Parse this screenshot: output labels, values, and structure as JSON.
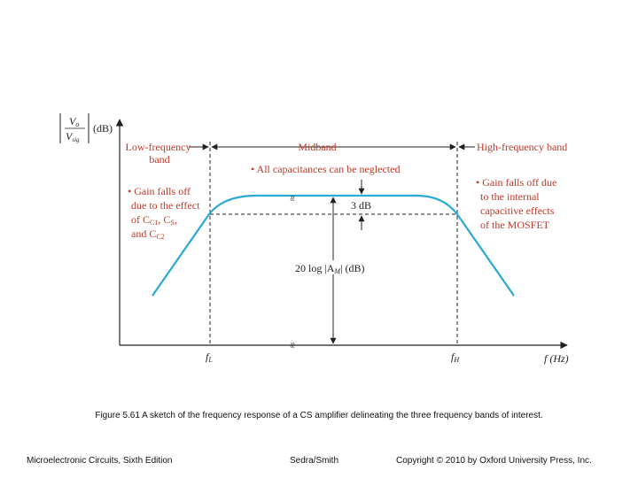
{
  "diagram": {
    "y_axis": {
      "fraction_numerator": "V",
      "numerator_sub": "o",
      "fraction_denominator": "V",
      "denominator_sub": "sig",
      "unit": "(dB)"
    },
    "x_axis": {
      "label": "f (Hz)"
    },
    "bands": {
      "low": [
        "Low-frequency",
        "band"
      ],
      "mid": "Midband",
      "high": "High-frequency band"
    },
    "notes": {
      "mid": "• All capacitances can be neglected",
      "low": [
        "• Gain falls off",
        "due to the effect",
        "of C",
        "and C"
      ],
      "low_subs": [
        "C1",
        "S",
        "C2"
      ],
      "high": [
        "• Gain falls off due",
        "to the internal",
        "capacitive effects",
        "of the MOSFET"
      ]
    },
    "markers": {
      "three_db": "3 dB",
      "gain_label": "20 log |A",
      "gain_sub": "M",
      "gain_tail": "| (dB)",
      "fL": "f",
      "fL_sub": "L",
      "fH": "f",
      "fH_sub": "H",
      "break_symbol": "≈"
    },
    "colors": {
      "curve": "#29a9d6",
      "annotation": "#c0392b",
      "axis": "#231f20"
    }
  },
  "caption": "Figure 5.61 A sketch of the frequency response of a CS amplifier delineating the three frequency bands of interest.",
  "footer": {
    "left": "Microelectronic Circuits, Sixth Edition",
    "center": "Sedra/Smith",
    "right": "Copyright © 2010 by Oxford University Press, Inc."
  }
}
